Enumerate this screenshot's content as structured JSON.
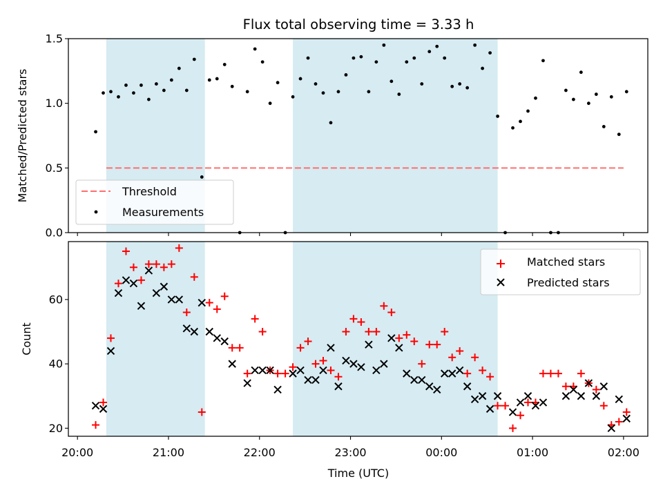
{
  "title": "Flux total observing time = 3.33 h",
  "colors": {
    "shade": "#add8e6",
    "threshold": "#ff6e6e",
    "measurement": "#000000",
    "matched": "#ff0000",
    "predicted": "#000000"
  },
  "chart_data": [
    {
      "type": "scatter",
      "ylabel": "Matched/Predicted stars",
      "ylim": [
        0,
        1.5
      ],
      "yticks": [
        "0.0",
        "0.5",
        "1.0",
        "1.5"
      ],
      "xlim": [
        "19:54",
        "02:16"
      ],
      "shaded_intervals": [
        [
          "20:19",
          "21:24"
        ],
        [
          "22:22",
          "00:37"
        ]
      ],
      "legend_position": "lower-left",
      "threshold": {
        "name": "Threshold",
        "value": 0.5,
        "x_range": [
          "20:19",
          "02:00"
        ]
      },
      "series": [
        {
          "name": "Measurements",
          "points": [
            [
              "20:12",
              0.78
            ],
            [
              "20:17",
              1.08
            ],
            [
              "20:22",
              1.09
            ],
            [
              "20:27",
              1.05
            ],
            [
              "20:32",
              1.14
            ],
            [
              "20:37",
              1.08
            ],
            [
              "20:42",
              1.14
            ],
            [
              "20:47",
              1.03
            ],
            [
              "20:52",
              1.15
            ],
            [
              "20:57",
              1.1
            ],
            [
              "21:02",
              1.18
            ],
            [
              "21:07",
              1.27
            ],
            [
              "21:12",
              1.1
            ],
            [
              "21:17",
              1.34
            ],
            [
              "21:22",
              0.43
            ],
            [
              "21:27",
              1.18
            ],
            [
              "21:32",
              1.19
            ],
            [
              "21:37",
              1.3
            ],
            [
              "21:42",
              1.13
            ],
            [
              "21:47",
              0.0
            ],
            [
              "21:52",
              1.09
            ],
            [
              "21:57",
              1.42
            ],
            [
              "22:02",
              1.32
            ],
            [
              "22:07",
              1.0
            ],
            [
              "22:12",
              1.16
            ],
            [
              "22:17",
              0.0
            ],
            [
              "22:22",
              1.05
            ],
            [
              "22:27",
              1.19
            ],
            [
              "22:32",
              1.35
            ],
            [
              "22:37",
              1.15
            ],
            [
              "22:42",
              1.08
            ],
            [
              "22:47",
              0.85
            ],
            [
              "22:52",
              1.09
            ],
            [
              "22:57",
              1.22
            ],
            [
              "23:02",
              1.35
            ],
            [
              "23:07",
              1.36
            ],
            [
              "23:12",
              1.09
            ],
            [
              "23:17",
              1.32
            ],
            [
              "23:22",
              1.45
            ],
            [
              "23:27",
              1.17
            ],
            [
              "23:32",
              1.07
            ],
            [
              "23:37",
              1.32
            ],
            [
              "23:42",
              1.35
            ],
            [
              "23:47",
              1.15
            ],
            [
              "23:52",
              1.4
            ],
            [
              "23:57",
              1.44
            ],
            [
              "00:02",
              1.35
            ],
            [
              "00:07",
              1.13
            ],
            [
              "00:12",
              1.15
            ],
            [
              "00:17",
              1.12
            ],
            [
              "00:22",
              1.45
            ],
            [
              "00:27",
              1.27
            ],
            [
              "00:32",
              1.39
            ],
            [
              "00:37",
              0.9
            ],
            [
              "00:42",
              0.0
            ],
            [
              "00:47",
              0.81
            ],
            [
              "00:52",
              0.86
            ],
            [
              "00:57",
              0.94
            ],
            [
              "01:02",
              1.04
            ],
            [
              "01:07",
              1.33
            ],
            [
              "01:12",
              0.0
            ],
            [
              "01:17",
              0.0
            ],
            [
              "01:22",
              1.1
            ],
            [
              "01:27",
              1.03
            ],
            [
              "01:32",
              1.24
            ],
            [
              "01:37",
              1.0
            ],
            [
              "01:42",
              1.07
            ],
            [
              "01:47",
              0.82
            ],
            [
              "01:52",
              1.05
            ],
            [
              "01:57",
              0.76
            ],
            [
              "02:02",
              1.09
            ]
          ]
        }
      ]
    },
    {
      "type": "scatter",
      "xlabel": "Time (UTC)",
      "ylabel": "Count",
      "ylim": [
        17.5,
        78
      ],
      "yticks": [
        "20",
        "40",
        "60"
      ],
      "xticks": [
        "20:00",
        "21:00",
        "22:00",
        "23:00",
        "00:00",
        "01:00",
        "02:00"
      ],
      "xlim": [
        "19:54",
        "02:16"
      ],
      "shaded_intervals": [
        [
          "20:19",
          "21:24"
        ],
        [
          "22:22",
          "00:37"
        ]
      ],
      "legend_position": "upper-right",
      "series": [
        {
          "name": "Matched stars",
          "marker": "plus",
          "points": [
            [
              "20:12",
              21
            ],
            [
              "20:17",
              28
            ],
            [
              "20:22",
              48
            ],
            [
              "20:27",
              65
            ],
            [
              "20:32",
              75
            ],
            [
              "20:37",
              70
            ],
            [
              "20:42",
              66
            ],
            [
              "20:47",
              71
            ],
            [
              "20:52",
              71
            ],
            [
              "20:57",
              70
            ],
            [
              "21:02",
              71
            ],
            [
              "21:07",
              76
            ],
            [
              "21:12",
              56
            ],
            [
              "21:17",
              67
            ],
            [
              "21:22",
              25
            ],
            [
              "21:27",
              59
            ],
            [
              "21:32",
              57
            ],
            [
              "21:37",
              61
            ],
            [
              "21:42",
              45
            ],
            [
              "21:47",
              45
            ],
            [
              "21:52",
              37
            ],
            [
              "21:57",
              54
            ],
            [
              "22:02",
              50
            ],
            [
              "22:07",
              38
            ],
            [
              "22:12",
              37
            ],
            [
              "22:17",
              37
            ],
            [
              "22:22",
              39
            ],
            [
              "22:27",
              45
            ],
            [
              "22:32",
              47
            ],
            [
              "22:37",
              40
            ],
            [
              "22:42",
              41
            ],
            [
              "22:47",
              38
            ],
            [
              "22:52",
              36
            ],
            [
              "22:57",
              50
            ],
            [
              "23:02",
              54
            ],
            [
              "23:07",
              53
            ],
            [
              "23:12",
              50
            ],
            [
              "23:17",
              50
            ],
            [
              "23:22",
              58
            ],
            [
              "23:27",
              56
            ],
            [
              "23:32",
              48
            ],
            [
              "23:37",
              49
            ],
            [
              "23:42",
              47
            ],
            [
              "23:47",
              40
            ],
            [
              "23:52",
              46
            ],
            [
              "23:57",
              46
            ],
            [
              "00:02",
              50
            ],
            [
              "00:07",
              42
            ],
            [
              "00:12",
              44
            ],
            [
              "00:17",
              37
            ],
            [
              "00:22",
              42
            ],
            [
              "00:27",
              38
            ],
            [
              "00:32",
              36
            ],
            [
              "00:37",
              27
            ],
            [
              "00:42",
              27
            ],
            [
              "00:47",
              20
            ],
            [
              "00:52",
              24
            ],
            [
              "00:57",
              28
            ],
            [
              "01:02",
              28
            ],
            [
              "01:07",
              37
            ],
            [
              "01:12",
              37
            ],
            [
              "01:17",
              37
            ],
            [
              "01:22",
              33
            ],
            [
              "01:27",
              33
            ],
            [
              "01:32",
              37
            ],
            [
              "01:37",
              34
            ],
            [
              "01:42",
              32
            ],
            [
              "01:47",
              27
            ],
            [
              "01:52",
              21
            ],
            [
              "01:57",
              22
            ],
            [
              "02:02",
              25
            ]
          ]
        },
        {
          "name": "Predicted stars",
          "marker": "x",
          "points": [
            [
              "20:12",
              27
            ],
            [
              "20:17",
              26
            ],
            [
              "20:22",
              44
            ],
            [
              "20:27",
              62
            ],
            [
              "20:32",
              66
            ],
            [
              "20:37",
              65
            ],
            [
              "20:42",
              58
            ],
            [
              "20:47",
              69
            ],
            [
              "20:52",
              62
            ],
            [
              "20:57",
              64
            ],
            [
              "21:02",
              60
            ],
            [
              "21:07",
              60
            ],
            [
              "21:12",
              51
            ],
            [
              "21:17",
              50
            ],
            [
              "21:22",
              59
            ],
            [
              "21:27",
              50
            ],
            [
              "21:32",
              48
            ],
            [
              "21:37",
              47
            ],
            [
              "21:42",
              40
            ],
            [
              "21:52",
              34
            ],
            [
              "21:57",
              38
            ],
            [
              "22:02",
              38
            ],
            [
              "22:07",
              38
            ],
            [
              "22:12",
              32
            ],
            [
              "22:22",
              37
            ],
            [
              "22:27",
              38
            ],
            [
              "22:32",
              35
            ],
            [
              "22:37",
              35
            ],
            [
              "22:42",
              38
            ],
            [
              "22:47",
              45
            ],
            [
              "22:52",
              33
            ],
            [
              "22:57",
              41
            ],
            [
              "23:02",
              40
            ],
            [
              "23:07",
              39
            ],
            [
              "23:12",
              46
            ],
            [
              "23:17",
              38
            ],
            [
              "23:22",
              40
            ],
            [
              "23:27",
              48
            ],
            [
              "23:32",
              45
            ],
            [
              "23:37",
              37
            ],
            [
              "23:42",
              35
            ],
            [
              "23:47",
              35
            ],
            [
              "23:52",
              33
            ],
            [
              "23:57",
              32
            ],
            [
              "00:02",
              37
            ],
            [
              "00:07",
              37
            ],
            [
              "00:12",
              38
            ],
            [
              "00:17",
              33
            ],
            [
              "00:22",
              29
            ],
            [
              "00:27",
              30
            ],
            [
              "00:32",
              26
            ],
            [
              "00:37",
              30
            ],
            [
              "00:47",
              25
            ],
            [
              "00:52",
              28
            ],
            [
              "00:57",
              30
            ],
            [
              "01:02",
              27
            ],
            [
              "01:07",
              28
            ],
            [
              "01:22",
              30
            ],
            [
              "01:27",
              32
            ],
            [
              "01:32",
              30
            ],
            [
              "01:37",
              34
            ],
            [
              "01:42",
              30
            ],
            [
              "01:47",
              33
            ],
            [
              "01:52",
              20
            ],
            [
              "01:57",
              29
            ],
            [
              "02:02",
              23
            ]
          ]
        }
      ]
    }
  ]
}
